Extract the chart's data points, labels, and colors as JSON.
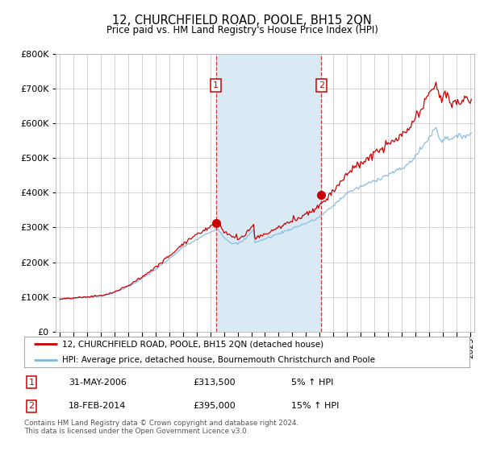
{
  "title": "12, CHURCHFIELD ROAD, POOLE, BH15 2QN",
  "subtitle": "Price paid vs. HM Land Registry's House Price Index (HPI)",
  "legend_line1": "12, CHURCHFIELD ROAD, POOLE, BH15 2QN (detached house)",
  "legend_line2": "HPI: Average price, detached house, Bournemouth Christchurch and Poole",
  "transaction1_date": "31-MAY-2006",
  "transaction1_price": 313500,
  "transaction1_pct": "5% ↑ HPI",
  "transaction2_date": "18-FEB-2014",
  "transaction2_price": 395000,
  "transaction2_pct": "15% ↑ HPI",
  "footnote": "Contains HM Land Registry data © Crown copyright and database right 2024.\nThis data is licensed under the Open Government Licence v3.0.",
  "hpi_color": "#7fb8e0",
  "price_color": "#cc0000",
  "marker_color": "#cc0000",
  "shading_color": "#daeaf5",
  "background_color": "#ffffff",
  "grid_color": "#cccccc",
  "ylim": [
    0,
    800000
  ],
  "yticks": [
    0,
    100000,
    200000,
    300000,
    400000,
    500000,
    600000,
    700000,
    800000
  ],
  "year_start": 1995,
  "year_end": 2025,
  "transaction1_year": 2006.42,
  "transaction2_year": 2014.12
}
